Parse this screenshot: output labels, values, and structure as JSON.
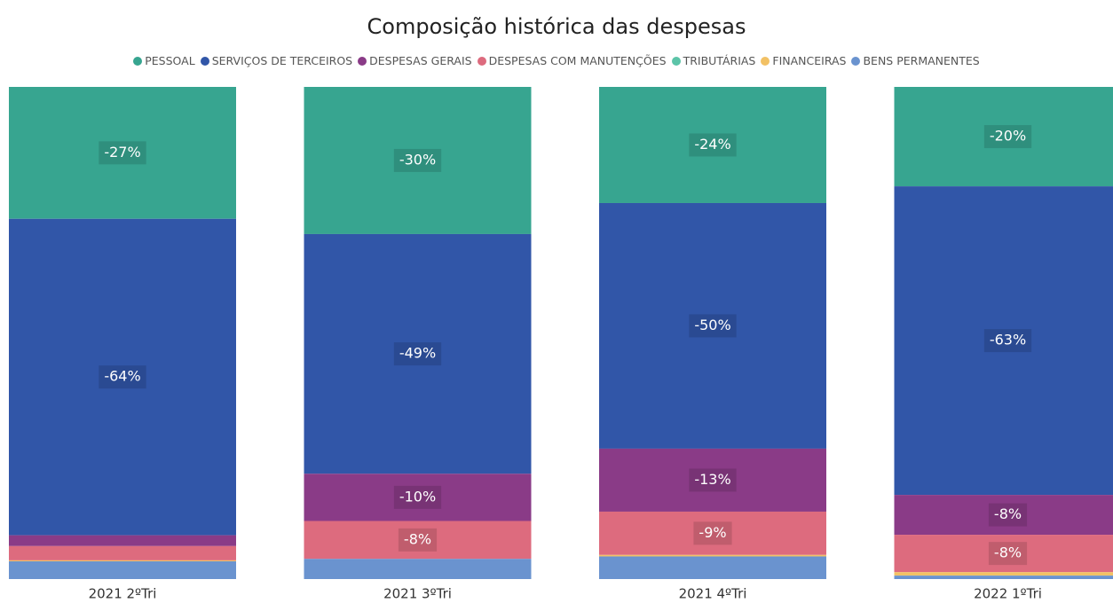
{
  "chart_data": {
    "type": "stacked_bar",
    "title": "Composição histórica das despesas",
    "categories": [
      "2021 2ºTri",
      "2021 3ºTri",
      "2021 4ºTri",
      "2022 1ºTri"
    ],
    "ylim": [
      -100,
      0
    ],
    "legend": "top",
    "series": [
      {
        "name": "PESSOAL",
        "color": "#37a590",
        "values": [
          -26.8,
          -29.9,
          -23.6,
          -20.2
        ],
        "value_labels": [
          "-27%",
          "-30%",
          "-24%",
          "-20%"
        ]
      },
      {
        "name": "SERVIÇOS DE TERCEIROS",
        "color": "#3156a8",
        "values": [
          -64.3,
          -48.7,
          -49.9,
          -62.7
        ],
        "value_labels": [
          "-64%",
          "-49%",
          "-50%",
          "-63%"
        ]
      },
      {
        "name": "DESPESAS GERAIS",
        "color": "#8a3b87",
        "values": [
          -2.2,
          -9.6,
          -12.8,
          -8.1
        ],
        "value_labels": [
          null,
          "-10%",
          "-13%",
          "-8%"
        ]
      },
      {
        "name": "DESPESAS COM MANUTENÇÕES",
        "color": "#dd6b7e",
        "values": [
          -2.9,
          -7.7,
          -8.8,
          -7.6
        ],
        "value_labels": [
          null,
          "-8%",
          "-9%",
          "-8%"
        ]
      },
      {
        "name": "TRIBUTÁRIAS",
        "color": "#5cc4a8",
        "values": [
          0,
          0,
          0,
          0
        ],
        "value_labels": [
          null,
          null,
          null,
          null
        ]
      },
      {
        "name": "FINANCEIRAS",
        "color": "#f2c165",
        "values": [
          -0.2,
          0,
          -0.3,
          -0.7
        ],
        "value_labels": [
          null,
          null,
          null,
          null
        ]
      },
      {
        "name": "BENS PERMANENTES",
        "color": "#6a93cf",
        "values": [
          -3.6,
          -4.1,
          -4.6,
          -0.7
        ],
        "value_labels": [
          null,
          null,
          null,
          null
        ]
      }
    ]
  }
}
